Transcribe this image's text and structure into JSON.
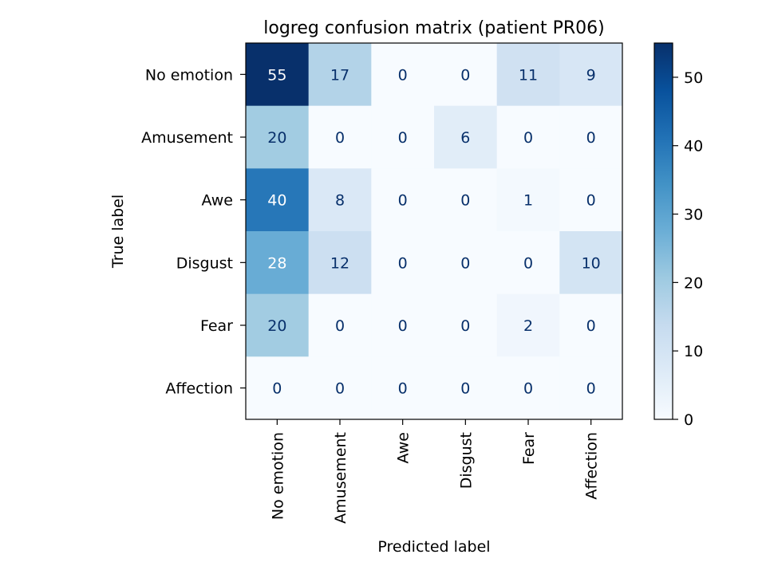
{
  "chart_data": {
    "type": "heatmap",
    "title": "logreg confusion matrix (patient PR06)",
    "xlabel": "Predicted label",
    "ylabel": "True label",
    "x_categories": [
      "No emotion",
      "Amusement",
      "Awe",
      "Disgust",
      "Fear",
      "Affection"
    ],
    "y_categories": [
      "No emotion",
      "Amusement",
      "Awe",
      "Disgust",
      "Fear",
      "Affection"
    ],
    "values": [
      [
        55,
        17,
        0,
        0,
        11,
        9
      ],
      [
        20,
        0,
        0,
        6,
        0,
        0
      ],
      [
        40,
        8,
        0,
        0,
        1,
        0
      ],
      [
        28,
        12,
        0,
        0,
        0,
        10
      ],
      [
        20,
        0,
        0,
        0,
        2,
        0
      ],
      [
        0,
        0,
        0,
        0,
        0,
        0
      ]
    ],
    "colormap": "Blues",
    "vmin": 0,
    "vmax": 55,
    "colorbar_ticks": [
      0,
      10,
      20,
      30,
      40,
      50
    ],
    "colors": {
      "low": "#f7fbff",
      "high": "#08306b",
      "text_dark": "#08306b",
      "text_light": "#ffffff"
    }
  }
}
